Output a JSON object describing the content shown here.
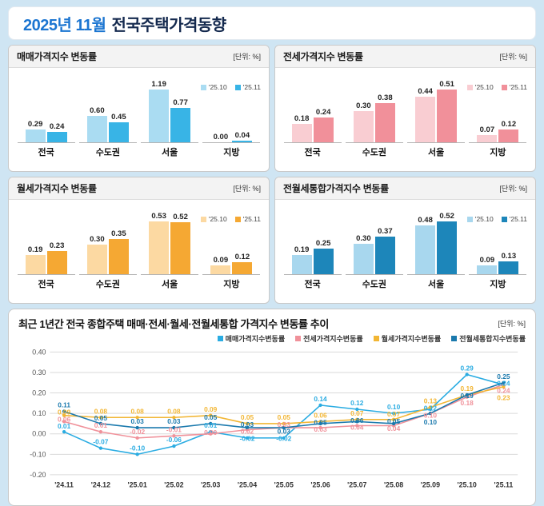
{
  "title": {
    "highlight": "2025년 11월",
    "rest": "전국주택가격동향"
  },
  "chart_data": [
    {
      "type": "bar",
      "title": "매매가격지수 변동률",
      "unit": "[단위: %]",
      "categories": [
        "전국",
        "수도권",
        "서울",
        "지방"
      ],
      "series": [
        {
          "name": "'25.10",
          "color": "#aadcf2",
          "values": [
            0.29,
            0.6,
            1.19,
            0.0
          ]
        },
        {
          "name": "'25.11",
          "color": "#38b4e6",
          "values": [
            0.24,
            0.45,
            0.77,
            0.04
          ]
        }
      ],
      "ylim": [
        0,
        1.3
      ],
      "legend_position": "top-right"
    },
    {
      "type": "bar",
      "title": "전세가격지수 변동률",
      "unit": "[단위: %]",
      "categories": [
        "전국",
        "수도권",
        "서울",
        "지방"
      ],
      "series": [
        {
          "name": "'25.10",
          "color": "#f9cdd2",
          "values": [
            0.18,
            0.3,
            0.44,
            0.07
          ]
        },
        {
          "name": "'25.11",
          "color": "#f1909a",
          "values": [
            0.24,
            0.38,
            0.51,
            0.12
          ]
        }
      ],
      "ylim": [
        0,
        0.6
      ],
      "legend_position": "top-right"
    },
    {
      "type": "bar",
      "title": "월세가격지수 변동률",
      "unit": "[단위: %]",
      "categories": [
        "전국",
        "수도권",
        "서울",
        "지방"
      ],
      "series": [
        {
          "name": "'25.10",
          "color": "#fcd9a2",
          "values": [
            0.19,
            0.3,
            0.53,
            0.09
          ]
        },
        {
          "name": "'25.11",
          "color": "#f5a833",
          "values": [
            0.23,
            0.35,
            0.52,
            0.12
          ]
        }
      ],
      "ylim": [
        0,
        0.6
      ],
      "legend_position": "top-right"
    },
    {
      "type": "bar",
      "title": "전월세통합가격지수 변동률",
      "unit": "[단위: %]",
      "categories": [
        "전국",
        "수도권",
        "서울",
        "지방"
      ],
      "series": [
        {
          "name": "'25.10",
          "color": "#a8d7ee",
          "values": [
            0.19,
            0.3,
            0.48,
            0.09
          ]
        },
        {
          "name": "'25.11",
          "color": "#1d86ba",
          "values": [
            0.25,
            0.37,
            0.52,
            0.13
          ]
        }
      ],
      "ylim": [
        0,
        0.6
      ],
      "legend_position": "top-right"
    },
    {
      "type": "line",
      "title": "최근 1년간 전국 종합주택 매매·전세·월세·전월세통합 가격지수 변동률 추이",
      "unit": "[단위: %]",
      "x": [
        "'24.11",
        "'24.12",
        "'25.01",
        "'25.02",
        "'25.03",
        "'25.04",
        "'25.05",
        "'25.06",
        "'25.07",
        "'25.08",
        "'25.09",
        "'25.10",
        "'25.11"
      ],
      "ylim": [
        -0.2,
        0.4
      ],
      "yticks": [
        0.4,
        0.3,
        0.2,
        0.1,
        0.0,
        -0.1,
        -0.2
      ],
      "grid": true,
      "legend_position": "top-right",
      "series": [
        {
          "name": "매매가격지수변동률",
          "color": "#2aace2",
          "values": [
            0.01,
            -0.07,
            -0.1,
            -0.06,
            0.01,
            -0.02,
            -0.02,
            0.14,
            0.12,
            0.1,
            0.12,
            0.29,
            0.24
          ]
        },
        {
          "name": "전세가격지수변동률",
          "color": "#f0919a",
          "values": [
            0.06,
            0.01,
            -0.02,
            -0.01,
            0.0,
            0.02,
            0.03,
            0.03,
            0.04,
            0.04,
            0.1,
            0.18,
            0.24
          ]
        },
        {
          "name": "월세가격지수변동률",
          "color": "#f2b634",
          "values": [
            0.09,
            0.08,
            0.08,
            0.08,
            0.09,
            0.05,
            0.05,
            0.06,
            0.07,
            0.07,
            0.13,
            0.19,
            0.23
          ]
        },
        {
          "name": "전월세통합지수변동률",
          "color": "#1a79ad",
          "values": [
            0.11,
            0.05,
            0.03,
            0.03,
            0.05,
            0.03,
            0.03,
            0.05,
            0.06,
            0.05,
            0.1,
            0.19,
            0.25
          ]
        }
      ]
    }
  ]
}
